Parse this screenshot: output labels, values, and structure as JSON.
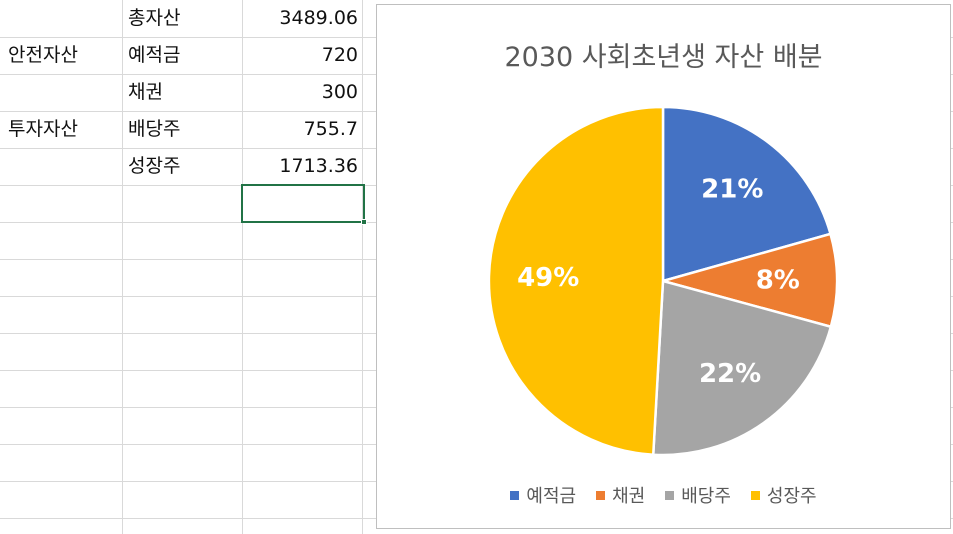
{
  "sheet": {
    "rows": [
      {
        "group": "",
        "item": "총자산",
        "value": "3489.06"
      },
      {
        "group": "안전자산",
        "item": "예적금",
        "value": "720"
      },
      {
        "group": "",
        "item": "채권",
        "value": "300"
      },
      {
        "group": "투자자산",
        "item": "배당주",
        "value": "755.7"
      },
      {
        "group": "",
        "item": "성장주",
        "value": "1713.36"
      }
    ]
  },
  "chart_data": {
    "type": "pie",
    "title": "2030 사회초년생 자산 배분",
    "categories": [
      "예적금",
      "채권",
      "배당주",
      "성장주"
    ],
    "values": [
      720,
      300,
      755.7,
      1713.36
    ],
    "data_labels": [
      "21%",
      "8%",
      "22%",
      "49%"
    ],
    "colors": [
      "#4472c4",
      "#ed7d31",
      "#a5a5a5",
      "#ffc000"
    ],
    "legend_position": "bottom"
  }
}
